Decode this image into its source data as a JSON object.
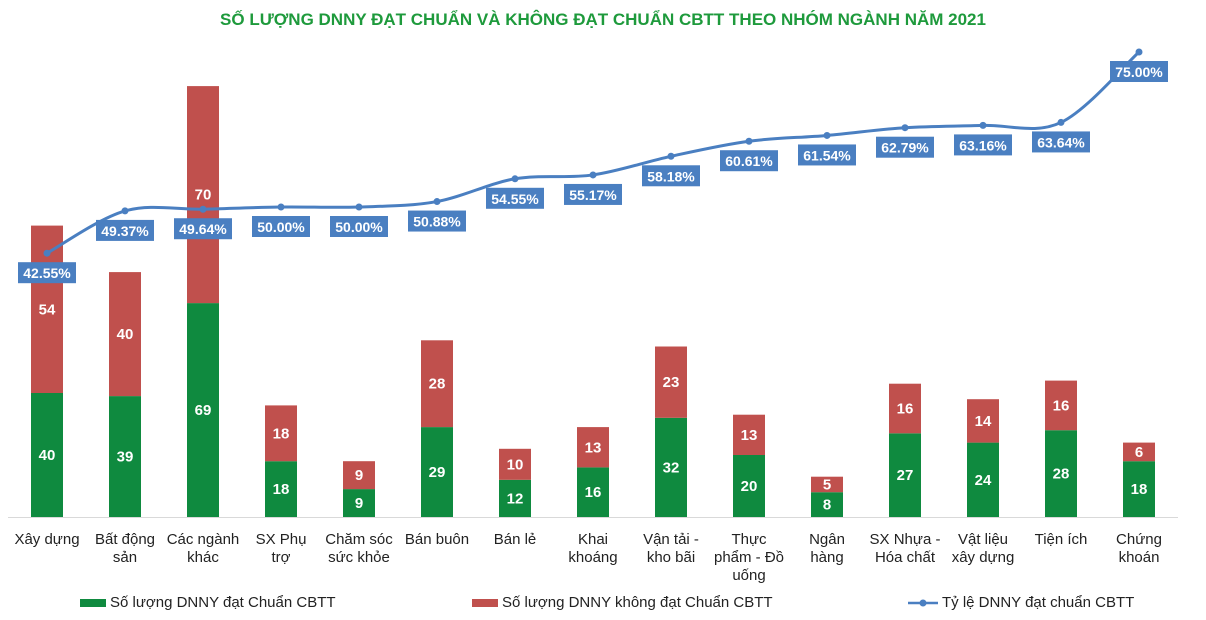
{
  "chart_data": {
    "type": "bar",
    "stacked": true,
    "title": "SỐ LƯỢNG DNNY ĐẠT CHUẨN VÀ KHÔNG ĐẠT CHUẨN CBTT THEO NHÓM NGÀNH NĂM 2021",
    "categories": [
      "Xây dựng",
      "Bất động sản",
      "Các ngành khác",
      "SX Phụ trợ",
      "Chăm sóc sức khỏe",
      "Bán buôn",
      "Bán lẻ",
      "Khai khoáng",
      "Vận tải - kho bãi",
      "Thực phẩm - Đồ uống",
      "Ngân hàng",
      "SX Nhựa - Hóa chất",
      "Vật liệu xây dựng",
      "Tiện ích",
      "Chứng khoán"
    ],
    "category_lines": [
      [
        "Xây dựng"
      ],
      [
        "Bất động",
        "sản"
      ],
      [
        "Các ngành",
        "khác"
      ],
      [
        "SX Phụ",
        "trợ"
      ],
      [
        "Chăm sóc",
        "sức khỏe"
      ],
      [
        "Bán buôn"
      ],
      [
        "Bán lẻ"
      ],
      [
        "Khai",
        "khoáng"
      ],
      [
        "Vận tải -",
        "kho bãi"
      ],
      [
        "Thực",
        "phẩm - Đồ",
        "uống"
      ],
      [
        "Ngân",
        "hàng"
      ],
      [
        "SX Nhựa -",
        "Hóa chất"
      ],
      [
        "Vật liệu",
        "xây dựng"
      ],
      [
        "Tiện ích"
      ],
      [
        "Chứng",
        "khoán"
      ]
    ],
    "series": [
      {
        "name": "Số lượng DNNY đạt Chuẩn CBTT",
        "type": "bar",
        "color": "#0f8a3f",
        "values": [
          40,
          39,
          69,
          18,
          9,
          29,
          12,
          16,
          32,
          20,
          8,
          27,
          24,
          28,
          18
        ]
      },
      {
        "name": "Số lượng DNNY không đạt Chuẩn CBTT",
        "type": "bar",
        "color": "#c0504d",
        "values": [
          54,
          40,
          70,
          18,
          9,
          28,
          10,
          13,
          23,
          13,
          5,
          16,
          14,
          16,
          6
        ]
      },
      {
        "name": "Tỷ lệ DNNY đạt chuẩn CBTT",
        "type": "line",
        "axis": "secondary",
        "color": "#4a7fc1",
        "values": [
          42.55,
          49.37,
          49.64,
          50.0,
          50.0,
          50.88,
          54.55,
          55.17,
          58.18,
          60.61,
          61.54,
          62.79,
          63.16,
          63.64,
          75.0
        ],
        "labels": [
          "42.55%",
          "49.37%",
          "49.64%",
          "50.00%",
          "50.00%",
          "50.88%",
          "54.55%",
          "55.17%",
          "58.18%",
          "60.61%",
          "61.54%",
          "62.79%",
          "63.16%",
          "63.64%",
          "75.00%"
        ]
      }
    ],
    "ylim": [
      0,
      160
    ],
    "y2lim": [
      0,
      80
    ],
    "axes_visible": false,
    "grid": false,
    "legend": "bottom"
  }
}
